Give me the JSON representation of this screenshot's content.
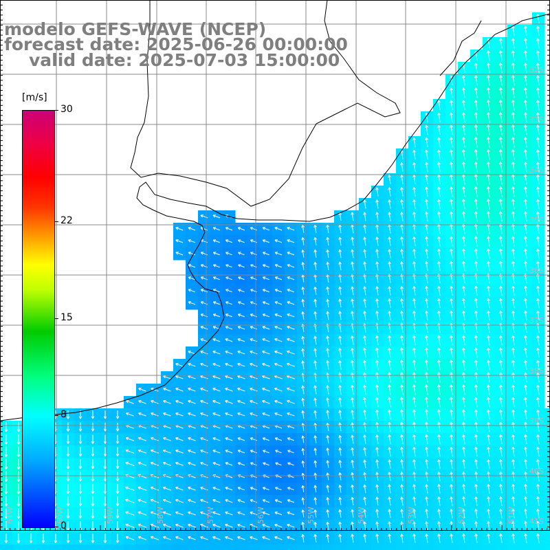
{
  "title": {
    "model": "modelo GEFS-WAVE (NCEP)",
    "forecast": "forecast date: 2025-06-26 00:00:00",
    "valid": "valid date: 2025-07-03 15:00:00"
  },
  "colorbar": {
    "unit": "[m/s]",
    "ticks": [
      {
        "label": "30",
        "value": 30
      },
      {
        "label": "22",
        "value": 22
      },
      {
        "label": "15",
        "value": 15
      },
      {
        "label": "8",
        "value": 8
      },
      {
        "label": "0",
        "value": 0
      }
    ]
  },
  "lat_labels": [
    "32S",
    "33S",
    "34S",
    "35S",
    "36S",
    "37S",
    "38S",
    "39S",
    "40S",
    "41S"
  ],
  "lon_labels": [
    "61W",
    "60W",
    "59W",
    "58W",
    "57W",
    "56W",
    "55W",
    "54W",
    "53W",
    "52W",
    "51W"
  ],
  "colors": {
    "ocean_low": "#1a55ff",
    "ocean_mid": "#0099ff",
    "ocean_high": "#00f0e0",
    "coast": "#000000",
    "grid": "#888888",
    "vector": "#ffffff",
    "title": "#7f7f7f"
  }
}
